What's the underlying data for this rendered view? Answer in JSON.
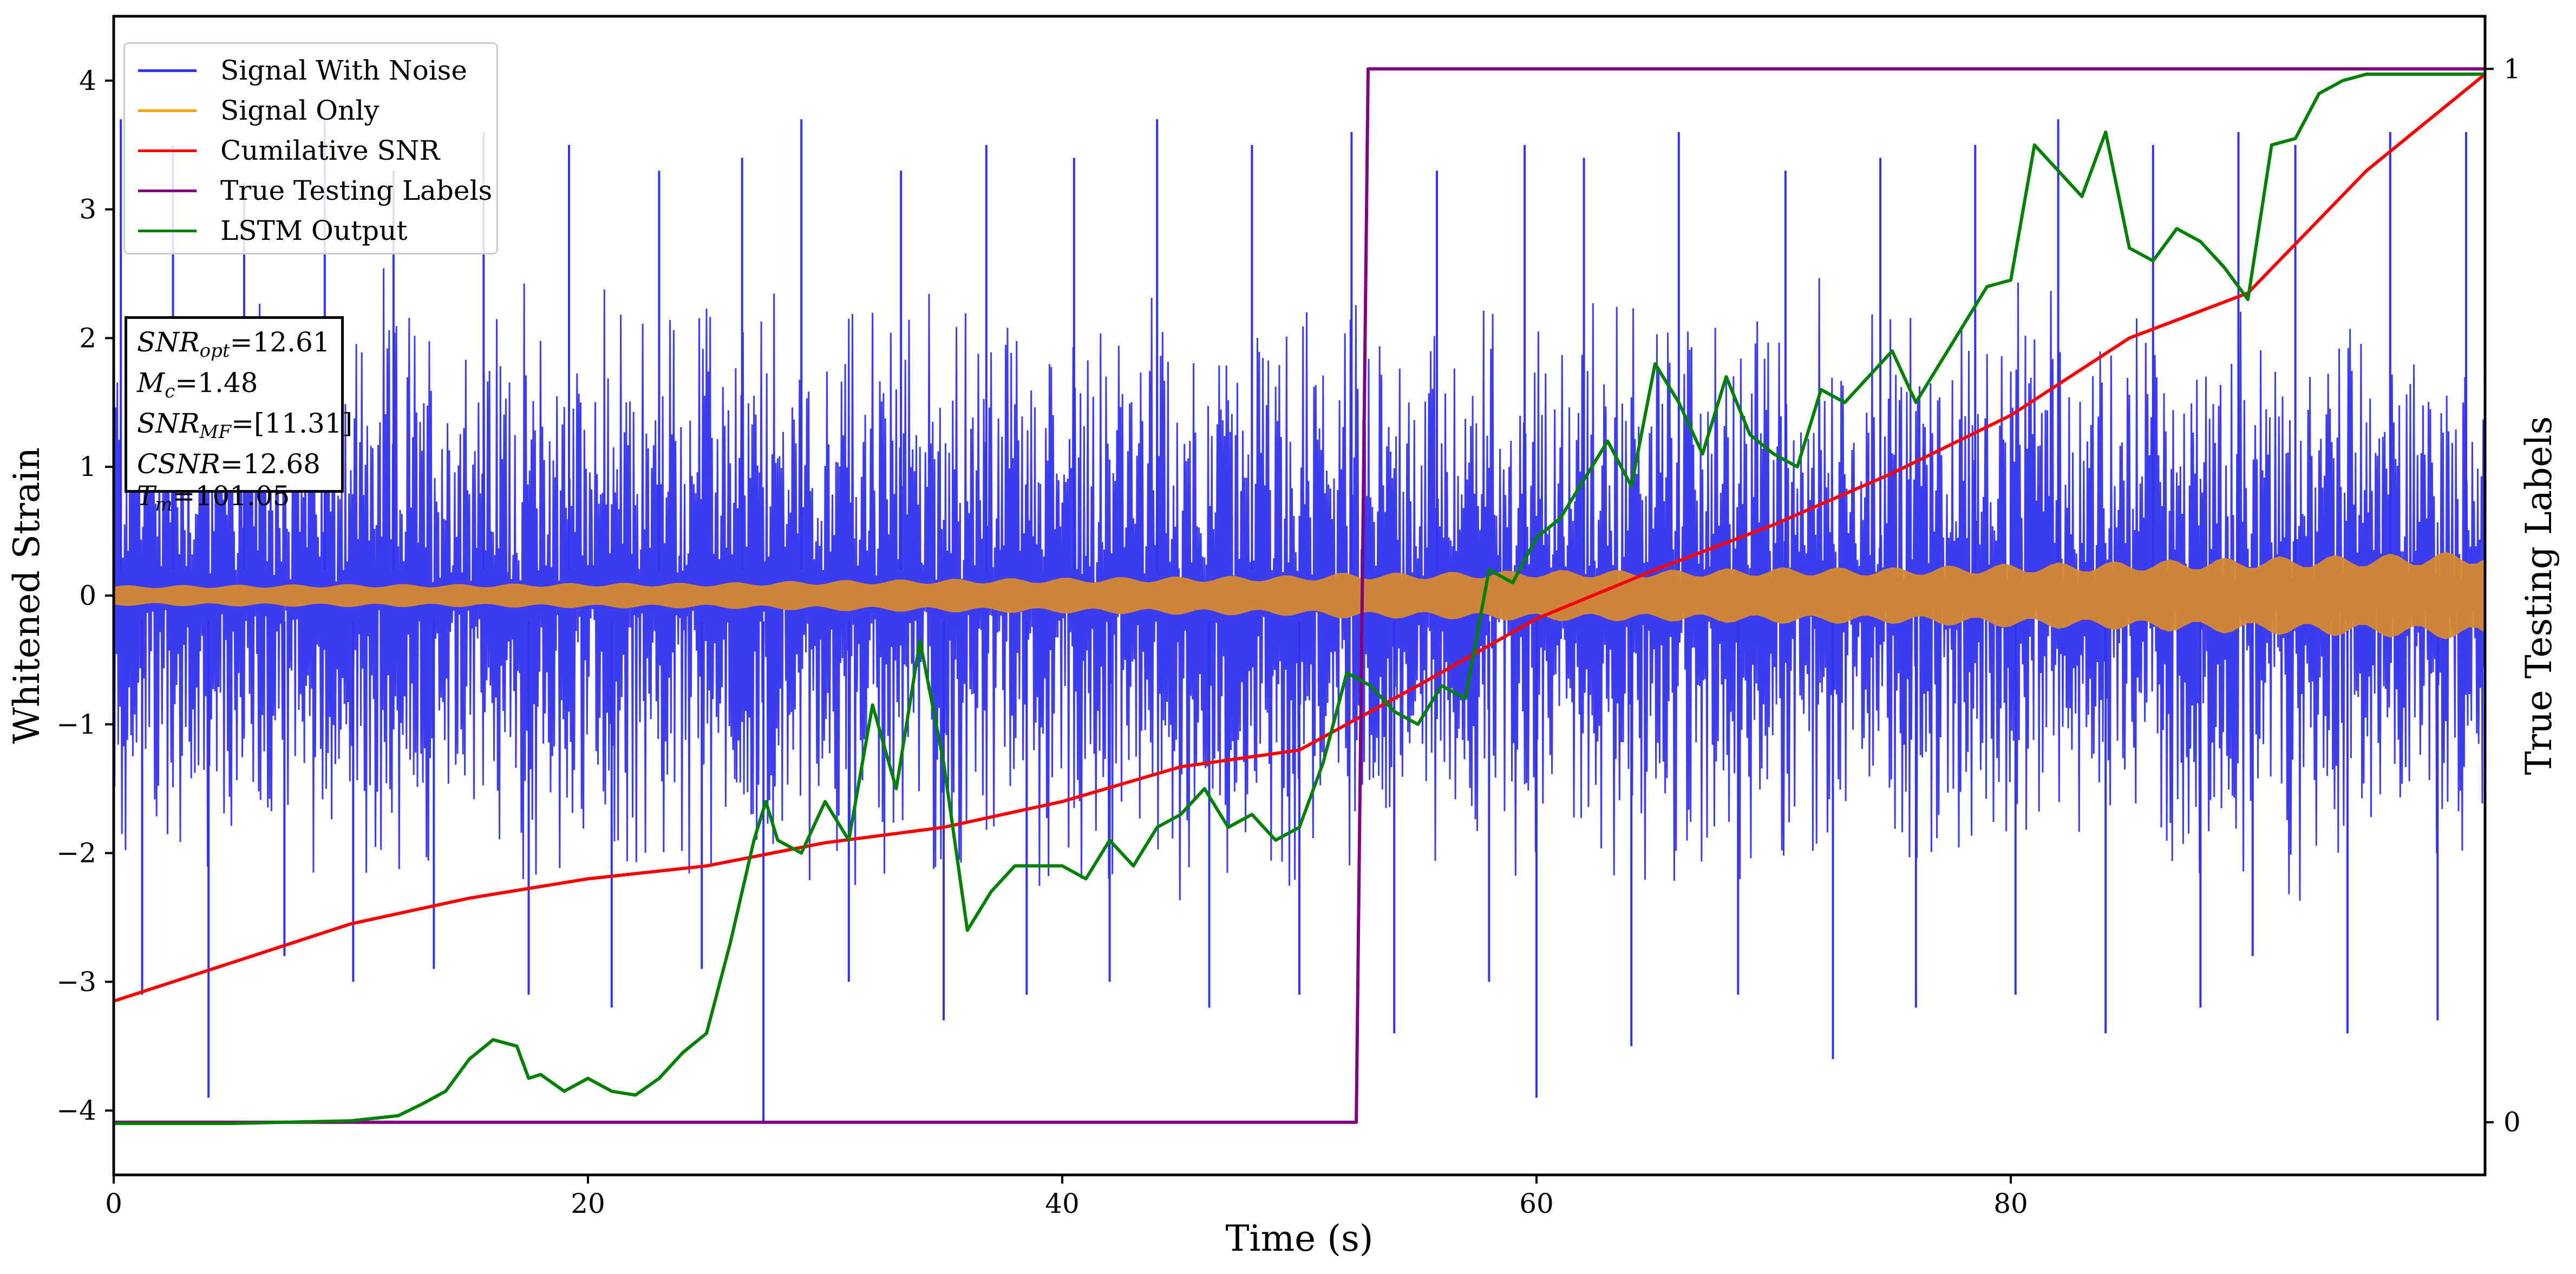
{
  "chart_data": {
    "type": "line",
    "xlabel": "Time (s)",
    "ylabel": "Whitened Strain",
    "y2label": "True Testing Labels",
    "xlim": [
      0,
      100
    ],
    "ylim": [
      -4.5,
      4.5
    ],
    "y2lim": [
      -0.05,
      1.05
    ],
    "xticks": [
      0,
      20,
      40,
      60,
      80
    ],
    "yticks": [
      -4,
      -3,
      -2,
      -1,
      0,
      1,
      2,
      3,
      4
    ],
    "y2ticks": [
      0,
      1
    ],
    "grid": false,
    "legend_position": "top-left",
    "series": [
      {
        "name": "Signal With Noise",
        "color": "#3333ee",
        "kind": "dense-noise-envelope",
        "axis": "left",
        "envelope_x": [
          0,
          10,
          20,
          30,
          40,
          50,
          60,
          70,
          80,
          90,
          100
        ],
        "upper_typical": [
          2.1,
          2.2,
          2.1,
          2.2,
          2.1,
          2.0,
          2.1,
          2.2,
          2.1,
          2.0,
          1.9
        ],
        "lower_typical": [
          -1.9,
          -2.0,
          -2.1,
          -2.0,
          -2.1,
          -2.0,
          -2.1,
          -2.0,
          -2.0,
          -2.1,
          -2.0
        ],
        "peaks_x": [
          0.3,
          1.2,
          2.5,
          4.0,
          5.5,
          7.2,
          8.9,
          10.1,
          11.8,
          13.5,
          15.6,
          17.5,
          19.2,
          21.0,
          23.0,
          24.8,
          26.5,
          27.4,
          29.0,
          31.0,
          33.2,
          35.0,
          36.8,
          38.5,
          40.5,
          42.0,
          44.0,
          46.2,
          48.0,
          50.0,
          52.2,
          54.0,
          55.8,
          58.0,
          59.5,
          60.0,
          62.0,
          64.0,
          66.0,
          68.5,
          70.5,
          72.5,
          74.5,
          76.0,
          78.5,
          80.2,
          82.0,
          84.0,
          86.0,
          88.0,
          89.6,
          90.2,
          92.0,
          94.2,
          96.0,
          98.0,
          99.2
        ],
        "peaks_y": [
          3.7,
          -3.1,
          3.5,
          -3.9,
          3.2,
          -2.8,
          3.7,
          -3.0,
          3.3,
          -2.9,
          3.6,
          -3.1,
          3.5,
          -3.2,
          3.3,
          -2.9,
          3.4,
          -4.1,
          3.7,
          -3.0,
          3.3,
          -3.3,
          3.5,
          -3.1,
          3.4,
          -3.0,
          3.7,
          -3.2,
          3.5,
          -3.1,
          3.6,
          -3.4,
          3.3,
          -3.0,
          3.5,
          -3.9,
          3.4,
          -3.5,
          3.6,
          -3.1,
          3.3,
          -3.6,
          3.4,
          -3.2,
          3.5,
          -3.1,
          3.7,
          -3.4,
          3.5,
          -3.2,
          3.6,
          -2.8,
          3.5,
          -3.4,
          3.6,
          -3.3,
          3.6
        ]
      },
      {
        "name": "Signal Only",
        "color": "#ffa500",
        "kind": "oscillation-band",
        "axis": "left",
        "amplitude_x": [
          0,
          10,
          15,
          20,
          25,
          30,
          35,
          40,
          45,
          50,
          52,
          55,
          60,
          65,
          70,
          75,
          80,
          85,
          90,
          95,
          100
        ],
        "amplitude_y": [
          0.08,
          0.09,
          0.09,
          0.1,
          0.1,
          0.12,
          0.13,
          0.14,
          0.15,
          0.16,
          0.18,
          0.18,
          0.2,
          0.2,
          0.22,
          0.22,
          0.25,
          0.27,
          0.3,
          0.32,
          0.35
        ]
      },
      {
        "name": "Cumilative SNR",
        "color": "#ff0000",
        "axis": "left",
        "x": [
          0,
          5,
          10,
          15,
          20,
          25,
          30,
          35,
          40,
          45,
          50,
          52,
          55,
          60,
          65,
          70,
          75,
          80,
          85,
          90,
          95,
          100
        ],
        "y": [
          -3.15,
          -2.85,
          -2.55,
          -2.35,
          -2.2,
          -2.1,
          -1.92,
          -1.8,
          -1.6,
          -1.33,
          -1.2,
          -1.0,
          -0.7,
          -0.18,
          0.2,
          0.55,
          0.95,
          1.4,
          2.0,
          2.35,
          3.3,
          4.05
        ]
      },
      {
        "name": "True Testing Labels",
        "color": "#800080",
        "axis": "right",
        "x": [
          0,
          52.4,
          52.9,
          100
        ],
        "y": [
          0,
          0,
          1,
          1
        ]
      },
      {
        "name": "LSTM Output",
        "color": "#008000",
        "axis": "left",
        "x": [
          0,
          5,
          10,
          12,
          13,
          14,
          15,
          16,
          17,
          17.5,
          18,
          19,
          20,
          21,
          22,
          23,
          24,
          25,
          26,
          27,
          27.5,
          28,
          29,
          30,
          31,
          32,
          33,
          34,
          35,
          36,
          37,
          38,
          39,
          40,
          41,
          42,
          43,
          44,
          45,
          46,
          47,
          48,
          49,
          50,
          51,
          52,
          53,
          54,
          55,
          56,
          57,
          58,
          59,
          60,
          61,
          62,
          63,
          64,
          65,
          66,
          67,
          68,
          69,
          70,
          71,
          72,
          73,
          74,
          75,
          76,
          77,
          78,
          79,
          80,
          81,
          82,
          83,
          84,
          85,
          86,
          87,
          88,
          89,
          90,
          91,
          92,
          93,
          94,
          95,
          100
        ],
        "y": [
          -4.1,
          -4.1,
          -4.08,
          -4.04,
          -3.95,
          -3.85,
          -3.6,
          -3.45,
          -3.5,
          -3.75,
          -3.72,
          -3.85,
          -3.75,
          -3.85,
          -3.88,
          -3.75,
          -3.55,
          -3.4,
          -2.7,
          -1.9,
          -1.6,
          -1.9,
          -2.0,
          -1.6,
          -1.9,
          -0.85,
          -1.5,
          -0.35,
          -1.3,
          -2.6,
          -2.3,
          -2.1,
          -2.1,
          -2.1,
          -2.2,
          -1.9,
          -2.1,
          -1.8,
          -1.7,
          -1.5,
          -1.8,
          -1.7,
          -1.9,
          -1.8,
          -1.3,
          -0.6,
          -0.7,
          -0.9,
          -1.0,
          -0.7,
          -0.8,
          0.2,
          0.1,
          0.45,
          0.6,
          0.9,
          1.2,
          0.85,
          1.8,
          1.5,
          1.1,
          1.7,
          1.25,
          1.1,
          1.0,
          1.6,
          1.5,
          1.7,
          1.9,
          1.5,
          1.8,
          2.1,
          2.4,
          2.45,
          3.5,
          3.3,
          3.1,
          3.6,
          2.7,
          2.6,
          2.85,
          2.75,
          2.55,
          2.3,
          3.5,
          3.55,
          3.9,
          4.0,
          4.05,
          4.05
        ]
      }
    ],
    "annotation": {
      "lines": [
        {
          "base": "SNR",
          "sub": "opt",
          "value": "=12.61"
        },
        {
          "base": "M",
          "sub": "c",
          "value": "=1.48"
        },
        {
          "base": "SNR",
          "sub": "MF",
          "value": "=[11.31]"
        },
        {
          "base": "CSNR",
          "sub": "",
          "value": "=12.68"
        },
        {
          "base": "T",
          "sub": "m",
          "value": "=101.05"
        }
      ]
    }
  }
}
